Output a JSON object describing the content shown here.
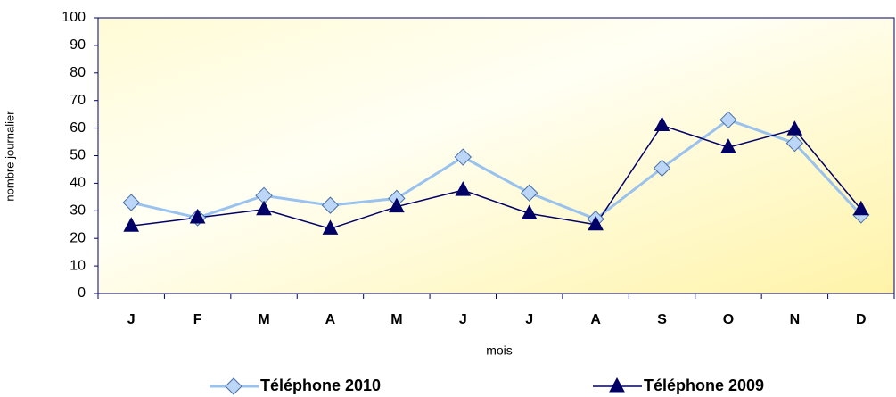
{
  "chart_data": {
    "type": "line",
    "x_label": "mois",
    "y_label": "nombre journalier",
    "categories": [
      "J",
      "F",
      "M",
      "A",
      "M",
      "J",
      "J",
      "A",
      "S",
      "O",
      "N",
      "D"
    ],
    "series": [
      {
        "name": "Téléphone 2010",
        "color": "#99c2ee",
        "marker": "diamond",
        "values": [
          33,
          27.5,
          35.5,
          32,
          34.5,
          49.5,
          36.5,
          27,
          45.5,
          63,
          54.5,
          28.5
        ]
      },
      {
        "name": "Téléphone 2009",
        "color": "#000066",
        "marker": "triangle",
        "values": [
          24.5,
          27.5,
          30.5,
          23.5,
          31.5,
          37.5,
          29,
          25,
          61,
          53,
          59.5,
          30.5
        ]
      }
    ],
    "ylim": [
      0,
      100
    ],
    "yticks": [
      0,
      10,
      20,
      30,
      40,
      50,
      60,
      70,
      80,
      90,
      100
    ],
    "legend": "bottom"
  }
}
